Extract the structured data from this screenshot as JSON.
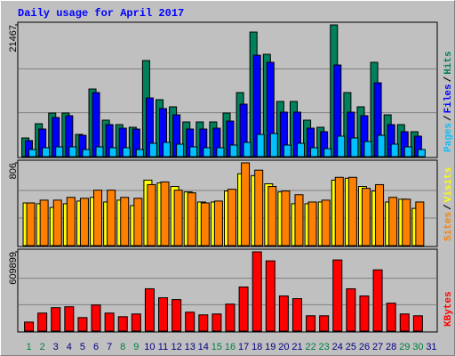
{
  "title": "Daily usage for April 2017",
  "chart_data": [
    {
      "type": "bar",
      "categories": [
        "1",
        "2",
        "3",
        "4",
        "5",
        "6",
        "7",
        "8",
        "9",
        "10",
        "11",
        "12",
        "13",
        "14",
        "15",
        "16",
        "17",
        "18",
        "19",
        "20",
        "21",
        "22",
        "23",
        "24",
        "25",
        "26",
        "27",
        "28",
        "29",
        "30",
        "31"
      ],
      "category_colors": [
        "#008040",
        "#008040",
        "#000080",
        "#000080",
        "#000080",
        "#000080",
        "#000080",
        "#008040",
        "#008040",
        "#000080",
        "#000080",
        "#000080",
        "#000080",
        "#000080",
        "#008040",
        "#008040",
        "#000080",
        "#000080",
        "#000080",
        "#000080",
        "#000080",
        "#008040",
        "#008040",
        "#000080",
        "#000080",
        "#000080",
        "#000080",
        "#000080",
        "#008040",
        "#008040",
        "#000080"
      ],
      "ylim": [
        0,
        21467
      ],
      "yticks": [
        21467
      ],
      "grid_divisions": 3,
      "legend_separator": "/",
      "series": [
        {
          "name": "Hits",
          "color": "#00805c",
          "values": [
            3045,
            5365,
            7105,
            7105,
            3625,
            11020,
            5945,
            5220,
            4785,
            15660,
            9280,
            8120,
            5655,
            5655,
            5655,
            7105,
            10440,
            20300,
            16675,
            8990,
            8990,
            5945,
            4785,
            21467,
            10440,
            8120,
            15370,
            6815,
            5220,
            4060,
            null
          ]
        },
        {
          "name": "Files",
          "color": "#0000ff",
          "values": [
            2610,
            4495,
            6380,
            6670,
            3480,
            10440,
            5220,
            4640,
            4495,
            9570,
            7830,
            6815,
            4495,
            4495,
            4640,
            5800,
            8555,
            16530,
            15370,
            7250,
            7250,
            4640,
            4060,
            14935,
            7250,
            6670,
            12035,
            5220,
            4060,
            3335,
            null
          ]
        },
        {
          "name": "Pages",
          "color": "#00c0ff",
          "values": [
            1160,
            1450,
            1595,
            1595,
            1160,
            1595,
            1450,
            1450,
            1160,
            2175,
            2320,
            2030,
            1595,
            1450,
            1450,
            1885,
            2320,
            3625,
            3770,
            1885,
            2175,
            1450,
            1305,
            3335,
            3045,
            2465,
            3480,
            2030,
            1595,
            1160,
            null
          ]
        }
      ]
    },
    {
      "type": "bar",
      "ylim": [
        0,
        806
      ],
      "yticks": [
        806
      ],
      "grid_divisions": 3,
      "legend_separator": "/",
      "series": [
        {
          "name": "Visits",
          "color": "#ffff00",
          "values": [
            416,
            408,
            372,
            408,
            434,
            470,
            425,
            443,
            390,
            638,
            611,
            576,
            523,
            425,
            425,
            532,
            700,
            682,
            602,
            523,
            408,
            408,
            425,
            638,
            656,
            576,
            532,
            425,
            452,
            363,
            null
          ]
        },
        {
          "name": "Sites",
          "color": "#ff8000",
          "values": [
            416,
            443,
            443,
            470,
            461,
            540,
            540,
            470,
            461,
            594,
            620,
            540,
            514,
            416,
            434,
            549,
            806,
            735,
            576,
            532,
            496,
            425,
            443,
            665,
            665,
            558,
            594,
            470,
            452,
            425,
            null
          ]
        }
      ]
    },
    {
      "type": "bar",
      "ylim": [
        0,
        609899
      ],
      "yticks": [
        609899
      ],
      "grid_divisions": 3,
      "series": [
        {
          "name": "KBytes",
          "color": "#ff0000",
          "values": [
            69310,
            138620,
            180206,
            187137,
            103965,
            200999,
            138620,
            110896,
            131689,
            325757,
            256447,
            242585,
            145551,
            124758,
            131689,
            207930,
            339619,
            609899,
            540618,
            270309,
            249516,
            117827,
            117827,
            547549,
            325757,
            270309,
            471308,
            214861,
            131689,
            117827,
            null
          ]
        }
      ]
    }
  ]
}
